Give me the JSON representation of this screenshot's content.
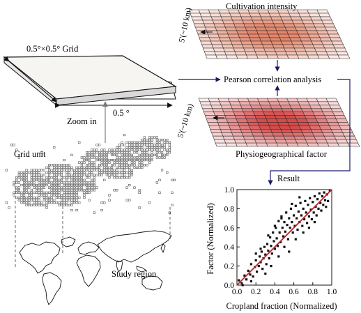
{
  "labels": {
    "grid": "0.5°×0.5° Grid",
    "half_degree": "0.5 °",
    "zoom_in": "Zoom in",
    "grid_unit": "Grid unit",
    "study_region": "Study region",
    "cultivation": "Cultivation intensity",
    "res_top": "5'(~10 km)",
    "res_bottom": "5'(~10 km)",
    "pearson": "Pearson correlation analysis",
    "physio": "Physiogeographical factor",
    "result": "Result"
  },
  "colors": {
    "arrow": "#1a1a6b",
    "fit_line": "#cc1f1f",
    "cultivation_hot": "#e3866b",
    "physio_hot": "#d64a4a",
    "slab_top": "#f7f5f2"
  },
  "chart_data": {
    "type": "scatter",
    "xlabel": "Cropland fraction (Normalized)",
    "ylabel": "Factor (Normalized)",
    "xlim": [
      0,
      1
    ],
    "ylim": [
      0,
      1
    ],
    "xticks": [
      "0.0",
      "0.2",
      "0.4",
      "0.6",
      "0.8",
      "1.0"
    ],
    "yticks": [
      "0.0",
      "0.2",
      "0.4",
      "0.6",
      "0.8",
      "1.0"
    ],
    "fit_line": [
      [
        0.0,
        0.0
      ],
      [
        1.0,
        1.0
      ]
    ],
    "points": [
      [
        0.02,
        0.05
      ],
      [
        0.05,
        0.02
      ],
      [
        0.08,
        0.1
      ],
      [
        0.1,
        0.06
      ],
      [
        0.12,
        0.15
      ],
      [
        0.14,
        0.11
      ],
      [
        0.15,
        0.22
      ],
      [
        0.17,
        0.09
      ],
      [
        0.19,
        0.19
      ],
      [
        0.2,
        0.26
      ],
      [
        0.21,
        0.14
      ],
      [
        0.23,
        0.2
      ],
      [
        0.24,
        0.3
      ],
      [
        0.25,
        0.24
      ],
      [
        0.26,
        0.35
      ],
      [
        0.27,
        0.17
      ],
      [
        0.28,
        0.28
      ],
      [
        0.29,
        0.4
      ],
      [
        0.3,
        0.32
      ],
      [
        0.31,
        0.22
      ],
      [
        0.32,
        0.43
      ],
      [
        0.33,
        0.36
      ],
      [
        0.34,
        0.28
      ],
      [
        0.35,
        0.5
      ],
      [
        0.36,
        0.41
      ],
      [
        0.37,
        0.33
      ],
      [
        0.38,
        0.55
      ],
      [
        0.39,
        0.46
      ],
      [
        0.4,
        0.38
      ],
      [
        0.41,
        0.6
      ],
      [
        0.42,
        0.49
      ],
      [
        0.43,
        0.41
      ],
      [
        0.44,
        0.67
      ],
      [
        0.45,
        0.55
      ],
      [
        0.46,
        0.45
      ],
      [
        0.47,
        0.72
      ],
      [
        0.48,
        0.6
      ],
      [
        0.49,
        0.51
      ],
      [
        0.5,
        0.66
      ],
      [
        0.51,
        0.56
      ],
      [
        0.52,
        0.76
      ],
      [
        0.53,
        0.63
      ],
      [
        0.54,
        0.48
      ],
      [
        0.55,
        0.7
      ],
      [
        0.56,
        0.6
      ],
      [
        0.57,
        0.8
      ],
      [
        0.58,
        0.66
      ],
      [
        0.59,
        0.55
      ],
      [
        0.6,
        0.73
      ],
      [
        0.61,
        0.62
      ],
      [
        0.62,
        0.83
      ],
      [
        0.63,
        0.7
      ],
      [
        0.64,
        0.58
      ],
      [
        0.65,
        0.77
      ],
      [
        0.66,
        0.66
      ],
      [
        0.67,
        0.86
      ],
      [
        0.68,
        0.73
      ],
      [
        0.69,
        0.62
      ],
      [
        0.7,
        0.8
      ],
      [
        0.71,
        0.69
      ],
      [
        0.72,
        0.88
      ],
      [
        0.73,
        0.76
      ],
      [
        0.74,
        0.65
      ],
      [
        0.75,
        0.84
      ],
      [
        0.76,
        0.72
      ],
      [
        0.77,
        0.91
      ],
      [
        0.78,
        0.79
      ],
      [
        0.79,
        0.69
      ],
      [
        0.8,
        0.87
      ],
      [
        0.81,
        0.76
      ],
      [
        0.82,
        0.93
      ],
      [
        0.83,
        0.82
      ],
      [
        0.84,
        0.73
      ],
      [
        0.85,
        0.9
      ],
      [
        0.86,
        0.8
      ],
      [
        0.87,
        0.96
      ],
      [
        0.88,
        0.86
      ],
      [
        0.89,
        0.78
      ],
      [
        0.9,
        0.93
      ],
      [
        0.91,
        0.84
      ],
      [
        0.92,
        0.97
      ],
      [
        0.93,
        0.89
      ],
      [
        0.94,
        0.82
      ],
      [
        0.95,
        0.95
      ],
      [
        0.96,
        0.88
      ],
      [
        0.98,
        0.99
      ],
      [
        0.3,
        0.12
      ],
      [
        0.36,
        0.2
      ],
      [
        0.44,
        0.3
      ],
      [
        0.5,
        0.4
      ],
      [
        0.55,
        0.35
      ],
      [
        0.62,
        0.48
      ],
      [
        0.7,
        0.55
      ],
      [
        0.76,
        0.6
      ],
      [
        0.82,
        0.66
      ],
      [
        0.25,
        0.38
      ],
      [
        0.33,
        0.52
      ],
      [
        0.4,
        0.62
      ],
      [
        0.47,
        0.7
      ],
      [
        0.58,
        0.85
      ],
      [
        0.66,
        0.92
      ],
      [
        0.2,
        0.33
      ],
      [
        0.15,
        0.04
      ],
      [
        0.06,
        0.0
      ]
    ]
  }
}
